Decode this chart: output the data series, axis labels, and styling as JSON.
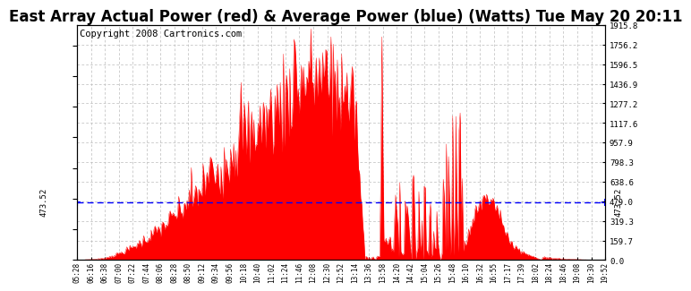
{
  "title": "East Array Actual Power (red) & Average Power (blue) (Watts) Tue May 20 20:11",
  "copyright": "Copyright 2008 Cartronics.com",
  "avg_power": 473.52,
  "y_max": 1915.8,
  "y_ticks": [
    0.0,
    159.7,
    319.3,
    479.0,
    638.6,
    798.3,
    957.9,
    1117.6,
    1277.2,
    1436.9,
    1596.5,
    1756.2,
    1915.8
  ],
  "x_tick_labels": [
    "05:28",
    "06:16",
    "06:38",
    "07:00",
    "07:22",
    "07:44",
    "08:06",
    "08:28",
    "08:50",
    "09:12",
    "09:34",
    "09:56",
    "10:18",
    "10:40",
    "11:02",
    "11:24",
    "11:46",
    "12:08",
    "12:30",
    "12:52",
    "13:14",
    "13:36",
    "13:58",
    "14:20",
    "14:42",
    "15:04",
    "15:26",
    "15:48",
    "16:10",
    "16:32",
    "16:55",
    "17:17",
    "17:39",
    "18:02",
    "18:24",
    "18:46",
    "19:08",
    "19:30",
    "19:52"
  ],
  "fill_color": "#FF0000",
  "avg_line_color": "#0000FF",
  "bg_color": "#FFFFFF",
  "grid_color": "#BBBBBB",
  "title_fontsize": 12,
  "copyright_fontsize": 7.5
}
